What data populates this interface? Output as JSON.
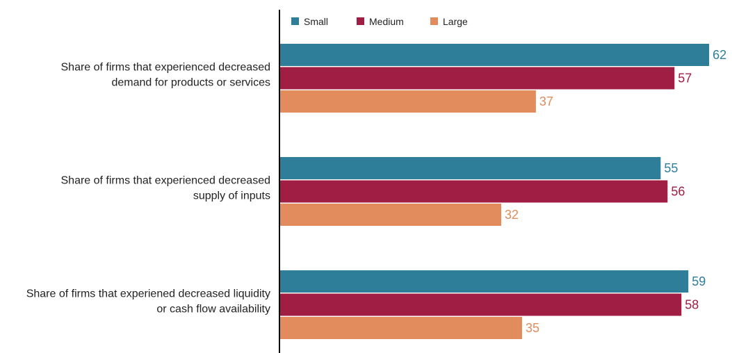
{
  "chart_data": {
    "type": "bar",
    "orientation": "horizontal",
    "title": "",
    "xlabel": "",
    "ylabel": "",
    "categories": [
      [
        "Share of firms that experienced decreased",
        "demand for products or services"
      ],
      [
        "Share of firms that experienced decreased",
        "supply of inputs"
      ],
      [
        "Share of firms that experiened decreased liquidity",
        "or cash flow availability"
      ]
    ],
    "series": [
      {
        "name": "Small",
        "color": "#2e7d99",
        "values": [
          62,
          55,
          59
        ]
      },
      {
        "name": "Medium",
        "color": "#a01d44",
        "values": [
          57,
          56,
          58
        ]
      },
      {
        "name": "Large",
        "color": "#e28b5c",
        "values": [
          37,
          32,
          35
        ]
      }
    ],
    "xlim": [
      0,
      70
    ],
    "grid": false,
    "legend": "top"
  }
}
